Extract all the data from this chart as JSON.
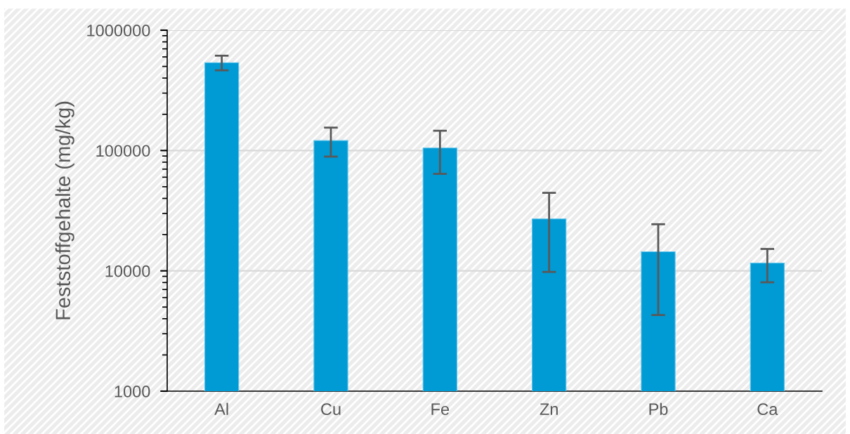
{
  "chart_data": {
    "type": "bar",
    "ylabel": "Feststoffgehalte (mg/kg)",
    "categories": [
      "Al",
      "Cu",
      "Fe",
      "Zn",
      "Pb",
      "Ca"
    ],
    "values": [
      537000,
      121000,
      105000,
      27000,
      14400,
      11600
    ],
    "errors": [
      [
        464000,
        614000
      ],
      [
        89000,
        155000
      ],
      [
        64000,
        146000
      ],
      [
        9800,
        44500
      ],
      [
        4290,
        24400
      ],
      [
        8030,
        15200
      ]
    ],
    "color": "#009ad4",
    "log": "y",
    "ylim": [
      1000,
      1000000
    ],
    "yticks": [
      1000,
      10000,
      100000,
      1000000
    ],
    "grid": "y",
    "legend": false
  }
}
